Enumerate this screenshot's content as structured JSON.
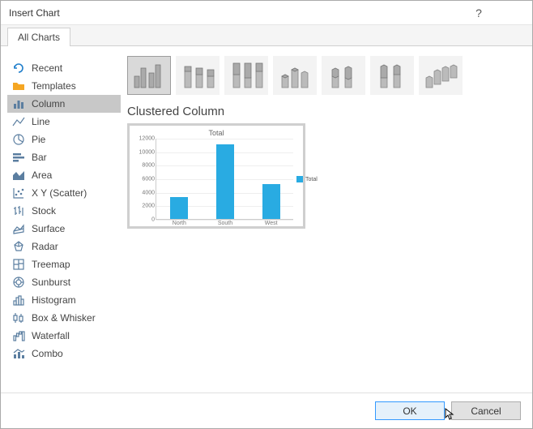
{
  "window": {
    "title": "Insert Chart"
  },
  "tabs": {
    "all_charts": "All Charts"
  },
  "sidebar": {
    "items": [
      {
        "label": "Recent"
      },
      {
        "label": "Templates"
      },
      {
        "label": "Column"
      },
      {
        "label": "Line"
      },
      {
        "label": "Pie"
      },
      {
        "label": "Bar"
      },
      {
        "label": "Area"
      },
      {
        "label": "X Y (Scatter)"
      },
      {
        "label": "Stock"
      },
      {
        "label": "Surface"
      },
      {
        "label": "Radar"
      },
      {
        "label": "Treemap"
      },
      {
        "label": "Sunburst"
      },
      {
        "label": "Histogram"
      },
      {
        "label": "Box & Whisker"
      },
      {
        "label": "Waterfall"
      },
      {
        "label": "Combo"
      }
    ],
    "selected_index": 2
  },
  "subtype": {
    "title": "Clustered Column"
  },
  "preview_chart": {
    "type": "bar",
    "title": "Total",
    "categories": [
      "North",
      "South",
      "West"
    ],
    "values": [
      3200,
      11000,
      5200
    ],
    "bar_color": "#29abe2",
    "ylim": [
      0,
      12000
    ],
    "ytick_step": 2000,
    "yticks": [
      "0",
      "2000",
      "4000",
      "6000",
      "8000",
      "10000",
      "12000"
    ],
    "background_color": "#ffffff",
    "grid_color": "#eeeeee",
    "axis_color": "#cccccc",
    "legend": {
      "label": "Total",
      "color": "#29abe2"
    }
  },
  "buttons": {
    "ok": "OK",
    "cancel": "Cancel"
  }
}
